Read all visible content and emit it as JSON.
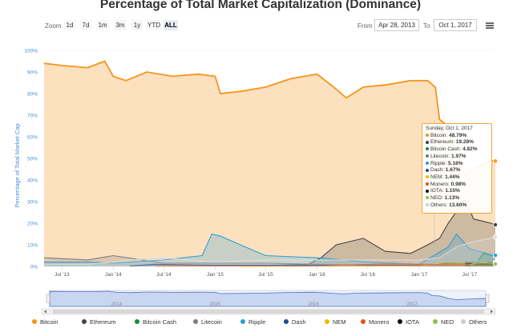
{
  "title": "Percentage of Total Market Capitalization (Dominance)",
  "toolbar": {
    "zoom_label": "Zoom",
    "zoom_buttons": [
      "1d",
      "7d",
      "1m",
      "3m",
      "1y",
      "YTD",
      "ALL"
    ],
    "active_zoom": "ALL",
    "from_label": "From",
    "from_value": "Apr 28, 2013",
    "to_label": "To",
    "to_value": "Oct 1, 2017"
  },
  "chart_data": {
    "type": "area",
    "title": "Percentage of Total Market Capitalization (Dominance)",
    "ylabel": "Percentage of Total Market Cap",
    "ylim": [
      0,
      100
    ],
    "y_ticks": [
      "0%",
      "10%",
      "20%",
      "30%",
      "40%",
      "50%",
      "60%",
      "70%",
      "80%",
      "90%",
      "100%"
    ],
    "x_ticks": [
      "Jul '13",
      "Jan '14",
      "Jul '14",
      "Jan '15",
      "Jul '15",
      "Jan '16",
      "Jul '16",
      "Jan '17",
      "Jul '17"
    ],
    "x_tick_dates": [
      "2013-07-01",
      "2014-01-01",
      "2014-07-01",
      "2015-01-01",
      "2015-07-01",
      "2016-01-01",
      "2016-07-01",
      "2017-01-01",
      "2017-07-01"
    ],
    "x_range": [
      "2013-04-28",
      "2017-10-01"
    ],
    "navigator_years": [
      "2014",
      "2015",
      "2016",
      "2017"
    ],
    "series": [
      {
        "name": "Bitcoin",
        "color": "#f7931a",
        "x": [
          "2013-04-28",
          "2013-07-01",
          "2013-10-01",
          "2013-12-01",
          "2014-01-01",
          "2014-02-15",
          "2014-05-01",
          "2014-08-01",
          "2014-11-01",
          "2015-01-01",
          "2015-01-20",
          "2015-04-01",
          "2015-07-01",
          "2015-10-01",
          "2016-01-01",
          "2016-03-01",
          "2016-04-15",
          "2016-06-15",
          "2016-09-01",
          "2016-12-01",
          "2017-02-01",
          "2017-02-28",
          "2017-03-15",
          "2017-04-15",
          "2017-05-15",
          "2017-06-15",
          "2017-07-15",
          "2017-08-15",
          "2017-09-15",
          "2017-10-01"
        ],
        "values": [
          94,
          93,
          92,
          95,
          88,
          86,
          90,
          88,
          89,
          88,
          80,
          81,
          83,
          87,
          89,
          83,
          78,
          83,
          84,
          86,
          86,
          83,
          68,
          65,
          50,
          42,
          45,
          47,
          49,
          48.79
        ]
      },
      {
        "name": "Ethereum",
        "color": "#434348",
        "x": [
          "2015-08-07",
          "2015-12-01",
          "2016-01-15",
          "2016-03-10",
          "2016-06-15",
          "2016-09-01",
          "2016-12-01",
          "2017-02-01",
          "2017-03-15",
          "2017-04-15",
          "2017-06-15",
          "2017-07-15",
          "2017-08-15",
          "2017-09-15",
          "2017-10-01"
        ],
        "values": [
          0.5,
          1,
          4,
          10,
          13,
          7,
          6,
          10,
          13,
          20,
          31,
          22,
          21,
          20,
          19.28
        ]
      },
      {
        "name": "Bitcoin Cash",
        "color": "#1b8a3c",
        "x": [
          "2017-08-01",
          "2017-08-20",
          "2017-09-15",
          "2017-10-01"
        ],
        "values": [
          3,
          6,
          5,
          4.82
        ]
      },
      {
        "name": "Litecoin",
        "color": "#7b7b7b",
        "x": [
          "2013-04-28",
          "2013-10-01",
          "2014-01-01",
          "2014-07-01",
          "2015-01-01",
          "2015-07-01",
          "2016-01-01",
          "2016-07-01",
          "2017-01-01",
          "2017-04-15",
          "2017-07-01",
          "2017-10-01"
        ],
        "values": [
          4,
          3,
          5,
          1.5,
          1.5,
          1.5,
          1,
          0.5,
          0.5,
          0.8,
          1.5,
          1.97
        ]
      },
      {
        "name": "Ripple",
        "color": "#2b9fd8",
        "x": [
          "2013-04-28",
          "2013-10-01",
          "2014-01-01",
          "2014-07-01",
          "2014-11-15",
          "2014-12-20",
          "2015-01-20",
          "2015-04-01",
          "2015-07-01",
          "2016-01-01",
          "2016-07-01",
          "2017-01-01",
          "2017-04-15",
          "2017-05-15",
          "2017-07-01",
          "2017-10-01"
        ],
        "values": [
          2,
          2,
          1.5,
          3,
          5,
          15,
          14,
          10,
          5,
          4,
          2,
          1,
          9,
          15,
          8,
          5.16
        ]
      },
      {
        "name": "Dash",
        "color": "#1a4f91",
        "x": [
          "2014-03-01",
          "2014-06-01",
          "2015-01-01",
          "2016-01-01",
          "2016-07-01",
          "2017-01-01",
          "2017-04-15",
          "2017-07-01",
          "2017-10-01"
        ],
        "values": [
          0.2,
          1,
          0.5,
          0.5,
          0.5,
          0.5,
          1.5,
          1.8,
          1.67
        ]
      },
      {
        "name": "NEM",
        "color": "#f5b800",
        "x": [
          "2015-04-01",
          "2016-01-01",
          "2017-01-01",
          "2017-04-15",
          "2017-07-01",
          "2017-10-01"
        ],
        "values": [
          0.1,
          0.2,
          0.2,
          2,
          1.6,
          1.44
        ]
      },
      {
        "name": "Monero",
        "color": "#e2531a",
        "x": [
          "2014-06-01",
          "2015-01-01",
          "2016-01-01",
          "2016-09-01",
          "2017-01-01",
          "2017-07-01",
          "2017-10-01"
        ],
        "values": [
          0.3,
          0.2,
          0.2,
          1.2,
          1,
          0.8,
          0.98
        ]
      },
      {
        "name": "IOTA",
        "color": "#111111",
        "x": [
          "2017-06-15",
          "2017-07-15",
          "2017-10-01"
        ],
        "values": [
          1.5,
          1.2,
          1.15
        ]
      },
      {
        "name": "NEO",
        "color": "#8bc34a",
        "x": [
          "2017-07-01",
          "2017-08-15",
          "2017-10-01"
        ],
        "values": [
          0.8,
          2,
          1.13
        ]
      },
      {
        "name": "Others",
        "color": "#dcdcdc",
        "x": [
          "2013-04-28",
          "2013-10-01",
          "2014-01-01",
          "2014-03-01",
          "2014-07-01",
          "2015-01-01",
          "2015-07-01",
          "2016-01-01",
          "2016-07-01",
          "2017-01-01",
          "2017-03-15",
          "2017-05-15",
          "2017-07-01",
          "2017-10-01"
        ],
        "values": [
          1,
          1,
          2,
          3,
          4,
          2,
          3,
          3,
          3,
          3,
          4,
          9,
          11,
          13.6
        ]
      }
    ]
  },
  "tooltip": {
    "date": "Sunday, Oct 1, 2017",
    "rows": [
      {
        "label": "Bitcoin:",
        "value": "48.79%",
        "color": "#f7931a"
      },
      {
        "label": "Ethereum:",
        "value": "19.28%",
        "color": "#434348"
      },
      {
        "label": "Bitcoin Cash:",
        "value": "4.82%",
        "color": "#1b8a3c"
      },
      {
        "label": "Litecoin:",
        "value": "1.97%",
        "color": "#7b7b7b"
      },
      {
        "label": "Ripple:",
        "value": "5.16%",
        "color": "#2b9fd8"
      },
      {
        "label": "Dash:",
        "value": "1.67%",
        "color": "#1a4f91"
      },
      {
        "label": "NEM:",
        "value": "1.44%",
        "color": "#f5b800"
      },
      {
        "label": "Monero:",
        "value": "0.98%",
        "color": "#e2531a"
      },
      {
        "label": "IOTA:",
        "value": "1.15%",
        "color": "#111111"
      },
      {
        "label": "NEO:",
        "value": "1.13%",
        "color": "#8bc34a"
      },
      {
        "label": "Others:",
        "value": "13.60%",
        "color": "#cccccc"
      }
    ]
  },
  "legend": [
    {
      "name": "Bitcoin",
      "color": "#f7931a"
    },
    {
      "name": "Ethereum",
      "color": "#434348"
    },
    {
      "name": "Bitcoin Cash",
      "color": "#1b8a3c"
    },
    {
      "name": "Litecoin",
      "color": "#7b7b7b"
    },
    {
      "name": "Ripple",
      "color": "#2b9fd8"
    },
    {
      "name": "Dash",
      "color": "#1a4f91"
    },
    {
      "name": "NEM",
      "color": "#f5b800"
    },
    {
      "name": "Monero",
      "color": "#e2531a"
    },
    {
      "name": "IOTA",
      "color": "#111111"
    },
    {
      "name": "NEO",
      "color": "#8bc34a"
    },
    {
      "name": "Others",
      "color": "#cccccc"
    }
  ],
  "colors": {
    "accent": "#f7931a",
    "plot_bg": "#fde8cc",
    "navigator": "#4a6fc8"
  }
}
